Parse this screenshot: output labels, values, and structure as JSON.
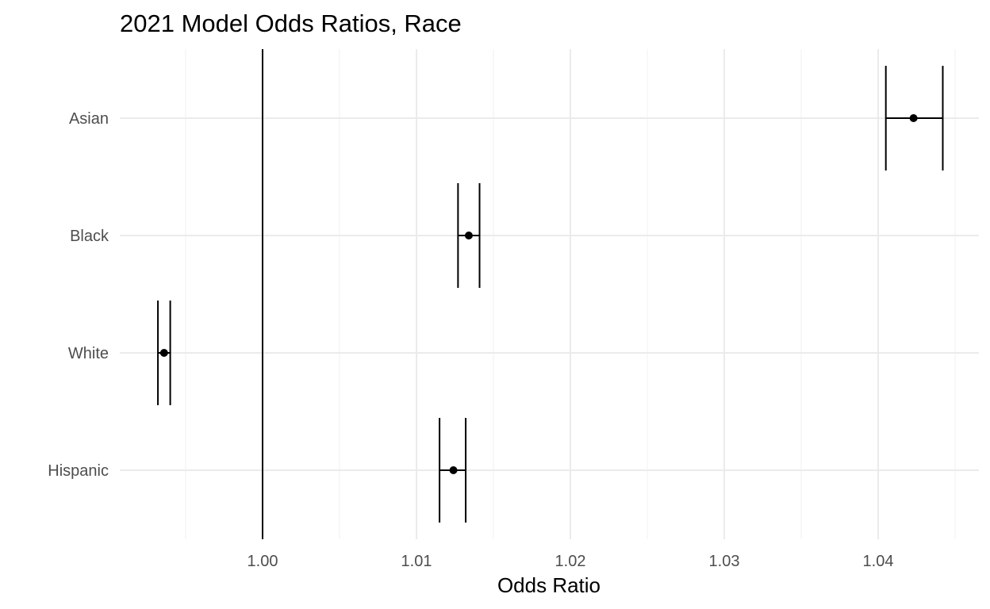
{
  "chart_data": {
    "type": "scatter",
    "title": "2021 Model Odds Ratios, Race",
    "xlabel": "Odds Ratio",
    "ylabel": "",
    "categories": [
      "Asian",
      "Black",
      "White",
      "Hispanic"
    ],
    "points": [
      {
        "category": "Asian",
        "estimate": 1.0423,
        "lower": 1.0405,
        "upper": 1.0442
      },
      {
        "category": "Black",
        "estimate": 1.0134,
        "lower": 1.0127,
        "upper": 1.0141
      },
      {
        "category": "White",
        "estimate": 0.9936,
        "lower": 0.9932,
        "upper": 0.994
      },
      {
        "category": "Hispanic",
        "estimate": 1.0124,
        "lower": 1.0115,
        "upper": 1.0132
      }
    ],
    "xticks": [
      1.0,
      1.01,
      1.02,
      1.03,
      1.04
    ],
    "xtick_labels": [
      "1.00",
      "1.01",
      "1.02",
      "1.03",
      "1.04"
    ],
    "xlim": [
      0.9923,
      1.0468
    ],
    "reference_x": 1.0,
    "grid": true,
    "legend": "none",
    "colors": {
      "marks": "#000000",
      "grid": "#ebebeb",
      "tick_text": "#4d4d4d"
    }
  }
}
